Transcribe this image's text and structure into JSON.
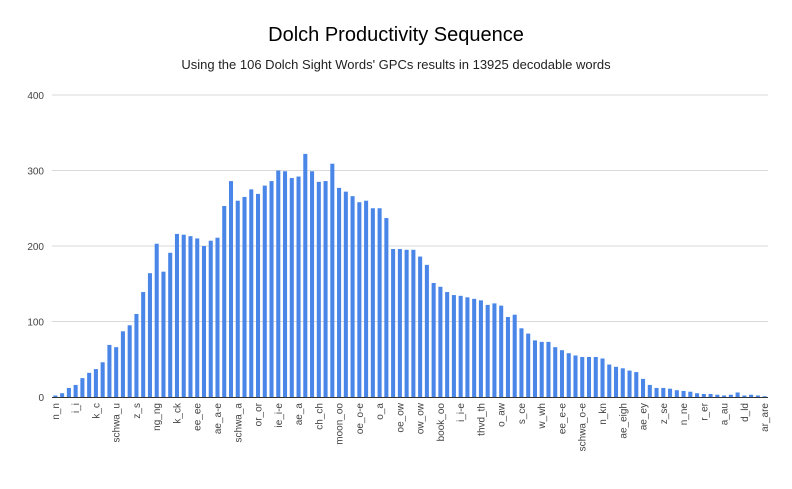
{
  "chart_data": {
    "type": "bar",
    "title": "Dolch Productivity Sequence",
    "subtitle": "Using the 106 Dolch Sight Words' GPCs results in 13925 decodable words",
    "xlabel": "",
    "ylabel": "",
    "ylim": [
      0,
      400
    ],
    "yticks": [
      0,
      100,
      200,
      300,
      400
    ],
    "grid": true,
    "legend": "none",
    "bar_color": "#4a86e8",
    "categories": [
      "n_n",
      "",
      "",
      "i_i",
      "",
      "",
      "k_c",
      "",
      "",
      "schwa_u",
      "",
      "",
      "z_s",
      "",
      "",
      "ng_ng",
      "",
      "",
      "k_ck",
      "",
      "",
      "ee_ee",
      "",
      "",
      "ae_a-e",
      "",
      "",
      "schwa_a",
      "",
      "",
      "or_or",
      "",
      "",
      "ie_i-e",
      "",
      "",
      "ae_a",
      "",
      "",
      "ch_ch",
      "",
      "",
      "moon_oo",
      "",
      "",
      "oe_o-e",
      "",
      "",
      "o_a",
      "",
      "",
      "oe_ow",
      "",
      "",
      "ow_ow",
      "",
      "",
      "book_oo",
      "",
      "",
      "i_i-e",
      "",
      "",
      "thvd_th",
      "",
      "",
      "o_aw",
      "",
      "",
      "s_ce",
      "",
      "",
      "w_wh",
      "",
      "",
      "ee_e-e",
      "",
      "",
      "schwa_o-e",
      "",
      "",
      "n_kn",
      "",
      "",
      "ae_eigh",
      "",
      "",
      "ae_ey",
      "",
      "",
      "z_se",
      "",
      "",
      "n_ne",
      "",
      "",
      "r_er",
      "",
      "",
      "a_au",
      "",
      "",
      "d_ld",
      "",
      "",
      "ar_are"
    ],
    "values": [
      2,
      5,
      12,
      16,
      25,
      32,
      37,
      46,
      69,
      66,
      87,
      95,
      110,
      139,
      164,
      203,
      166,
      191,
      216,
      215,
      213,
      210,
      200,
      207,
      211,
      253,
      286,
      260,
      265,
      275,
      269,
      280,
      286,
      300,
      299,
      290,
      292,
      322,
      299,
      285,
      286,
      309,
      277,
      272,
      266,
      258,
      260,
      250,
      250,
      237,
      196,
      196,
      195,
      195,
      186,
      175,
      151,
      146,
      139,
      135,
      134,
      132,
      130,
      128,
      122,
      124,
      121,
      106,
      109,
      91,
      84,
      75,
      73,
      73,
      66,
      62,
      58,
      55,
      53,
      53,
      53,
      51,
      43,
      40,
      38,
      35,
      33,
      24,
      16,
      12,
      12,
      11,
      9,
      8,
      7,
      5,
      4,
      4,
      3,
      2,
      3,
      6,
      2,
      3,
      2,
      1
    ]
  }
}
